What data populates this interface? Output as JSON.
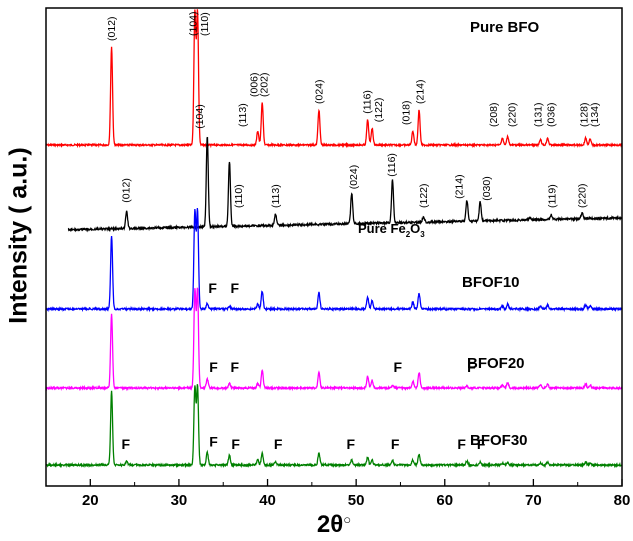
{
  "chart_data": {
    "type": "line",
    "title": "",
    "xlabel": "2θ",
    "xlabel_suffix": "○",
    "ylabel": "Intensity ( a.u.)",
    "xlim": [
      15,
      80
    ],
    "x_ticks": [
      20,
      30,
      40,
      50,
      60,
      70,
      80
    ],
    "x_tick_labels": [
      "20",
      "30",
      "40",
      "50",
      "60",
      "70",
      "80"
    ],
    "y_ticks_shown": false,
    "grid": false,
    "series": [
      {
        "name": "Pure BFO",
        "color": "#ff0000",
        "x_start": 15,
        "baseline": 0.0,
        "baseline_slope": 0.0,
        "peaks": [
          [
            22.4,
            0.7
          ],
          [
            31.8,
            0.95
          ],
          [
            32.1,
            0.95
          ],
          [
            38.9,
            0.1
          ],
          [
            39.4,
            0.3
          ],
          [
            45.8,
            0.25
          ],
          [
            51.3,
            0.18
          ],
          [
            51.8,
            0.12
          ],
          [
            56.4,
            0.1
          ],
          [
            57.1,
            0.25
          ],
          [
            66.5,
            0.05
          ],
          [
            67.1,
            0.06
          ],
          [
            70.8,
            0.04
          ],
          [
            71.6,
            0.05
          ],
          [
            75.9,
            0.05
          ],
          [
            76.4,
            0.04
          ]
        ],
        "peak_labels": [
          {
            "x": 22.4,
            "label": "(012)"
          },
          {
            "x": 31.6,
            "label": "(104)"
          },
          {
            "x": 32.9,
            "label": "(110)"
          },
          {
            "x": 37.2,
            "label": "(113)"
          },
          {
            "x": 38.5,
            "label": "(006)"
          },
          {
            "x": 39.6,
            "label": "(202)"
          },
          {
            "x": 45.8,
            "label": "(024)"
          },
          {
            "x": 51.2,
            "label": "(116)"
          },
          {
            "x": 52.5,
            "label": "(122)"
          },
          {
            "x": 55.6,
            "label": "(018)"
          },
          {
            "x": 57.2,
            "label": "(214)"
          },
          {
            "x": 65.5,
            "label": "(208)"
          },
          {
            "x": 67.6,
            "label": "(220)"
          },
          {
            "x": 70.5,
            "label": "(131)"
          },
          {
            "x": 72.0,
            "label": "(036)"
          },
          {
            "x": 75.7,
            "label": "(128)"
          },
          {
            "x": 76.9,
            "label": "(134)"
          }
        ]
      },
      {
        "name": "Pure Fe₂O₃",
        "name_parts": [
          "Pure Fe",
          "2",
          "O",
          "3"
        ],
        "color": "#000000",
        "x_start": 17.5,
        "baseline": -0.04,
        "baseline_slope": 0.002,
        "peaks": [
          [
            24.1,
            0.18
          ],
          [
            33.2,
            0.95
          ],
          [
            35.7,
            0.68
          ],
          [
            40.9,
            0.12
          ],
          [
            49.5,
            0.32
          ],
          [
            54.1,
            0.45
          ],
          [
            57.6,
            0.06
          ],
          [
            62.5,
            0.22
          ],
          [
            64.0,
            0.2
          ],
          [
            69.6,
            0.02
          ],
          [
            72.0,
            0.05
          ],
          [
            75.5,
            0.06
          ]
        ],
        "peak_labels": [
          {
            "x": 24.0,
            "label": "(012)"
          },
          {
            "x": 32.3,
            "label": "(104)"
          },
          {
            "x": 36.7,
            "label": "(110)"
          },
          {
            "x": 40.9,
            "label": "(113)"
          },
          {
            "x": 49.7,
            "label": "(024)"
          },
          {
            "x": 54.0,
            "label": "(116)"
          },
          {
            "x": 57.6,
            "label": "(122)"
          },
          {
            "x": 61.6,
            "label": "(214)"
          },
          {
            "x": 64.7,
            "label": "(030)"
          },
          {
            "x": 72.1,
            "label": "(119)"
          },
          {
            "x": 75.5,
            "label": "(220)"
          }
        ]
      },
      {
        "name": "BFOF10",
        "color": "#0000ff",
        "x_start": 15,
        "baseline": 0.0,
        "baseline_slope": 0.0,
        "peaks": [
          [
            22.4,
            0.75
          ],
          [
            31.8,
            1.0
          ],
          [
            32.1,
            1.0
          ],
          [
            33.2,
            0.06
          ],
          [
            35.7,
            0.03
          ],
          [
            38.9,
            0.05
          ],
          [
            39.4,
            0.18
          ],
          [
            45.8,
            0.17
          ],
          [
            51.3,
            0.12
          ],
          [
            51.8,
            0.08
          ],
          [
            56.4,
            0.07
          ],
          [
            57.1,
            0.16
          ],
          [
            66.5,
            0.03
          ],
          [
            67.1,
            0.05
          ],
          [
            70.8,
            0.03
          ],
          [
            71.6,
            0.04
          ],
          [
            75.9,
            0.04
          ],
          [
            76.4,
            0.03
          ]
        ],
        "peak_labels": [
          {
            "x": 33.8,
            "label": "F"
          },
          {
            "x": 36.3,
            "label": "F"
          }
        ]
      },
      {
        "name": "BFOF20",
        "color": "#ff00ff",
        "x_start": 15,
        "baseline": 0.0,
        "baseline_slope": 0.0,
        "peaks": [
          [
            22.4,
            0.75
          ],
          [
            31.8,
            1.0
          ],
          [
            32.1,
            1.0
          ],
          [
            33.2,
            0.09
          ],
          [
            35.7,
            0.05
          ],
          [
            38.9,
            0.05
          ],
          [
            39.4,
            0.18
          ],
          [
            45.8,
            0.17
          ],
          [
            51.3,
            0.12
          ],
          [
            51.8,
            0.08
          ],
          [
            54.1,
            0.02
          ],
          [
            56.4,
            0.07
          ],
          [
            57.1,
            0.16
          ],
          [
            62.5,
            0.02
          ],
          [
            66.5,
            0.03
          ],
          [
            67.1,
            0.05
          ],
          [
            70.8,
            0.03
          ],
          [
            71.6,
            0.04
          ],
          [
            75.9,
            0.04
          ],
          [
            76.4,
            0.03
          ]
        ],
        "peak_labels": [
          {
            "x": 33.9,
            "label": "F"
          },
          {
            "x": 36.3,
            "label": "F"
          },
          {
            "x": 54.7,
            "label": "F"
          },
          {
            "x": 63.0,
            "label": "F"
          }
        ]
      },
      {
        "name": "BFOF30",
        "color": "#008000",
        "x_start": 15,
        "baseline": 0.0,
        "baseline_slope": 0.0,
        "peaks": [
          [
            22.4,
            0.75
          ],
          [
            24.1,
            0.04
          ],
          [
            31.8,
            0.8
          ],
          [
            32.1,
            0.8
          ],
          [
            33.2,
            0.13
          ],
          [
            35.7,
            0.1
          ],
          [
            38.9,
            0.05
          ],
          [
            39.4,
            0.12
          ],
          [
            40.9,
            0.03
          ],
          [
            45.8,
            0.12
          ],
          [
            49.5,
            0.05
          ],
          [
            51.3,
            0.08
          ],
          [
            51.8,
            0.05
          ],
          [
            54.1,
            0.05
          ],
          [
            56.4,
            0.05
          ],
          [
            57.1,
            0.11
          ],
          [
            62.5,
            0.04
          ],
          [
            64.0,
            0.03
          ],
          [
            66.5,
            0.02
          ],
          [
            67.1,
            0.03
          ],
          [
            70.8,
            0.02
          ],
          [
            71.6,
            0.03
          ],
          [
            75.9,
            0.03
          ],
          [
            76.4,
            0.02
          ]
        ],
        "peak_labels": [
          {
            "x": 24.0,
            "label": "F"
          },
          {
            "x": 33.9,
            "label": "F"
          },
          {
            "x": 36.4,
            "label": "F"
          },
          {
            "x": 41.2,
            "label": "F"
          },
          {
            "x": 49.4,
            "label": "F"
          },
          {
            "x": 54.4,
            "label": "F"
          },
          {
            "x": 61.9,
            "label": "F"
          },
          {
            "x": 64.1,
            "label": "F"
          }
        ]
      }
    ]
  }
}
